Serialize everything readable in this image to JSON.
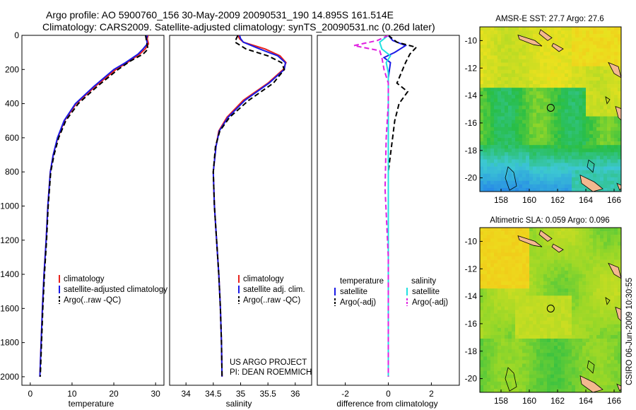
{
  "header": {
    "line1": "Argo profile: AO 5900760_156 30-May-2009 20090531_190 14.895S 161.514E",
    "line2": "Climatology: CARS2009. Satellite-adjusted climatology: synTS_20090531.nc (0.26d later)"
  },
  "credit": {
    "line1": "US ARGO PROJECT",
    "line2": "PI: DEAN ROEMMICH"
  },
  "timestamp": "CSIRO 06-Jun-2009 10:30:55",
  "colors": {
    "climatology": "#e8231d",
    "satellite": "#1a1ae6",
    "argo": "#000000",
    "salinity_satellite": "#22e0e0",
    "salinity_argo": "#e020e0",
    "land": "#f4b88f"
  },
  "chart_data": [
    {
      "type": "line",
      "xlabel": "temperature",
      "xlim": [
        -2,
        32
      ],
      "ylim": [
        0,
        2050
      ],
      "y_reversed": true,
      "xticks": [
        0,
        10,
        20,
        30
      ],
      "yticks": [
        0,
        200,
        400,
        600,
        800,
        1000,
        1200,
        1400,
        1600,
        1800,
        2000
      ],
      "legend": [
        "climatology",
        "satellite-adjusted climatology",
        "Argo(..raw -QC)"
      ],
      "series": [
        {
          "name": "climatology",
          "style": "solid",
          "color": "#e8231d",
          "points": [
            [
              28.2,
              0
            ],
            [
              28.0,
              20
            ],
            [
              28.3,
              50
            ],
            [
              27.5,
              80
            ],
            [
              26.2,
              110
            ],
            [
              23.2,
              160
            ],
            [
              20.5,
              200
            ],
            [
              15.5,
              300
            ],
            [
              11.0,
              400
            ],
            [
              8.2,
              500
            ],
            [
              6.6,
              600
            ],
            [
              5.5,
              700
            ],
            [
              4.8,
              800
            ],
            [
              4.2,
              1000
            ],
            [
              3.8,
              1200
            ],
            [
              3.3,
              1400
            ],
            [
              2.9,
              1600
            ],
            [
              2.6,
              1800
            ],
            [
              2.3,
              2000
            ]
          ]
        },
        {
          "name": "satellite-adjusted climatology",
          "style": "solid",
          "color": "#1a1ae6",
          "points": [
            [
              28.0,
              0
            ],
            [
              27.8,
              20
            ],
            [
              28.0,
              50
            ],
            [
              27.0,
              80
            ],
            [
              25.8,
              110
            ],
            [
              22.8,
              160
            ],
            [
              20.0,
              200
            ],
            [
              15.2,
              300
            ],
            [
              10.8,
              400
            ],
            [
              8.1,
              500
            ],
            [
              6.5,
              600
            ],
            [
              5.5,
              700
            ],
            [
              4.8,
              800
            ],
            [
              4.2,
              1000
            ],
            [
              3.8,
              1200
            ],
            [
              3.3,
              1400
            ],
            [
              2.9,
              1600
            ],
            [
              2.6,
              1800
            ],
            [
              2.3,
              2000
            ]
          ]
        },
        {
          "name": "Argo(..raw -QC)",
          "style": "dashed",
          "color": "#000000",
          "points": [
            [
              27.6,
              0
            ],
            [
              27.8,
              30
            ],
            [
              28.0,
              60
            ],
            [
              28.2,
              80
            ],
            [
              27.0,
              110
            ],
            [
              24.0,
              150
            ],
            [
              21.0,
              200
            ],
            [
              16.0,
              300
            ],
            [
              11.5,
              400
            ],
            [
              8.5,
              500
            ],
            [
              6.8,
              600
            ],
            [
              5.7,
              700
            ],
            [
              4.9,
              800
            ],
            [
              4.3,
              1000
            ],
            [
              3.9,
              1200
            ],
            [
              3.4,
              1400
            ],
            [
              3.0,
              1600
            ],
            [
              2.7,
              1800
            ],
            [
              2.4,
              2000
            ]
          ]
        }
      ]
    },
    {
      "type": "line",
      "xlabel": "salinity",
      "xlim": [
        33.7,
        36.3
      ],
      "ylim": [
        0,
        2050
      ],
      "y_reversed": true,
      "xticks": [
        34,
        34.5,
        35,
        35.5,
        36
      ],
      "legend": [
        "climatology",
        "satellite adj. clim.",
        "Argo(..raw -QC)"
      ],
      "series": [
        {
          "name": "climatology",
          "style": "solid",
          "color": "#e8231d",
          "points": [
            [
              34.95,
              0
            ],
            [
              34.98,
              20
            ],
            [
              35.05,
              40
            ],
            [
              35.45,
              80
            ],
            [
              35.72,
              120
            ],
            [
              35.83,
              160
            ],
            [
              35.78,
              200
            ],
            [
              35.5,
              280
            ],
            [
              35.05,
              380
            ],
            [
              34.75,
              480
            ],
            [
              34.6,
              560
            ],
            [
              34.55,
              650
            ],
            [
              34.5,
              800
            ],
            [
              34.52,
              1000
            ],
            [
              34.56,
              1200
            ],
            [
              34.6,
              1400
            ],
            [
              34.63,
              1600
            ],
            [
              34.65,
              1800
            ],
            [
              34.66,
              2000
            ]
          ]
        },
        {
          "name": "satellite adj. clim.",
          "style": "solid",
          "color": "#1a1ae6",
          "points": [
            [
              34.98,
              0
            ],
            [
              35.0,
              20
            ],
            [
              35.05,
              40
            ],
            [
              35.35,
              80
            ],
            [
              35.68,
              120
            ],
            [
              35.82,
              160
            ],
            [
              35.8,
              200
            ],
            [
              35.52,
              280
            ],
            [
              35.08,
              380
            ],
            [
              34.77,
              480
            ],
            [
              34.61,
              560
            ],
            [
              34.55,
              650
            ],
            [
              34.5,
              800
            ],
            [
              34.52,
              1000
            ],
            [
              34.56,
              1200
            ],
            [
              34.6,
              1400
            ],
            [
              34.63,
              1600
            ],
            [
              34.65,
              1800
            ],
            [
              34.66,
              2000
            ]
          ]
        },
        {
          "name": "Argo(..raw -QC)",
          "style": "dashed",
          "color": "#000000",
          "points": [
            [
              34.95,
              0
            ],
            [
              34.92,
              20
            ],
            [
              34.9,
              40
            ],
            [
              35.1,
              80
            ],
            [
              35.5,
              120
            ],
            [
              35.75,
              160
            ],
            [
              35.8,
              200
            ],
            [
              35.6,
              280
            ],
            [
              35.15,
              380
            ],
            [
              34.8,
              480
            ],
            [
              34.62,
              560
            ],
            [
              34.54,
              650
            ],
            [
              34.5,
              800
            ],
            [
              34.52,
              1000
            ],
            [
              34.56,
              1200
            ],
            [
              34.6,
              1400
            ],
            [
              34.63,
              1600
            ],
            [
              34.65,
              1800
            ],
            [
              34.66,
              2000
            ]
          ]
        }
      ]
    },
    {
      "type": "line",
      "xlabel": "difference from climatology",
      "xlim": [
        -3.3,
        3.3
      ],
      "ylim": [
        0,
        2050
      ],
      "y_reversed": true,
      "xticks": [
        -2,
        0,
        2
      ],
      "legend": [
        "temperature",
        "satellite",
        "Argo(-adj)",
        "salinity",
        "satellite",
        "Argo(-adj)"
      ],
      "legend_headers": [
        "temperature",
        "salinity"
      ],
      "series": [
        {
          "name": "satellite",
          "group": "temperature",
          "style": "solid",
          "color": "#1a1ae6",
          "points": [
            [
              0.0,
              0
            ],
            [
              0.2,
              30
            ],
            [
              0.8,
              60
            ],
            [
              0.3,
              100
            ],
            [
              -0.2,
              130
            ],
            [
              0.1,
              160
            ],
            [
              0.0,
              250
            ],
            [
              0.0,
              400
            ],
            [
              0.0,
              600
            ],
            [
              0.0,
              2000
            ]
          ]
        },
        {
          "name": "Argo(-adj)",
          "group": "temperature",
          "style": "dashed",
          "color": "#000000",
          "points": [
            [
              0.0,
              0
            ],
            [
              0.4,
              40
            ],
            [
              1.3,
              70
            ],
            [
              1.0,
              110
            ],
            [
              0.8,
              160
            ],
            [
              0.6,
              220
            ],
            [
              0.4,
              280
            ],
            [
              0.9,
              330
            ],
            [
              0.5,
              400
            ],
            [
              0.3,
              500
            ],
            [
              0.2,
              600
            ],
            [
              0.1,
              700
            ],
            [
              0.0,
              800
            ],
            [
              0.0,
              2000
            ]
          ]
        },
        {
          "name": "satellite",
          "group": "salinity",
          "style": "solid",
          "color": "#22e0e0",
          "points": [
            [
              0.0,
              0
            ],
            [
              -0.4,
              40
            ],
            [
              -0.3,
              80
            ],
            [
              0.1,
              120
            ],
            [
              -0.1,
              160
            ],
            [
              0.0,
              220
            ],
            [
              0.0,
              400
            ],
            [
              0.0,
              2000
            ]
          ]
        },
        {
          "name": "Argo(-adj)",
          "group": "salinity",
          "style": "dashed",
          "color": "#e020e0",
          "points": [
            [
              0.0,
              0
            ],
            [
              -0.5,
              30
            ],
            [
              -1.6,
              60
            ],
            [
              -0.4,
              90
            ],
            [
              -0.3,
              130
            ],
            [
              -0.2,
              200
            ],
            [
              0.0,
              280
            ],
            [
              0.0,
              400
            ],
            [
              -0.1,
              600
            ],
            [
              -0.15,
              900
            ],
            [
              0.0,
              1300
            ],
            [
              0.0,
              2000
            ]
          ]
        }
      ]
    },
    {
      "type": "heatmap",
      "title": "AMSR-E SST: 27.7  Argo: 27.6",
      "xlim": [
        156.5,
        166.5
      ],
      "ylim": [
        -21,
        -9
      ],
      "xticks": [
        158,
        160,
        162,
        164,
        166
      ],
      "yticks": [
        -10,
        -12,
        -14,
        -16,
        -18,
        -20
      ],
      "marker": {
        "lon": 161.514,
        "lat": -14.895
      }
    },
    {
      "type": "heatmap",
      "title": "Altimetric SLA: 0.059  Argo: 0.096",
      "xlim": [
        156.5,
        166.5
      ],
      "ylim": [
        -21,
        -9
      ],
      "xticks": [
        158,
        160,
        162,
        164,
        166
      ],
      "yticks": [
        -10,
        -12,
        -14,
        -16,
        -18,
        -20
      ],
      "marker": {
        "lon": 161.514,
        "lat": -14.895
      }
    }
  ]
}
